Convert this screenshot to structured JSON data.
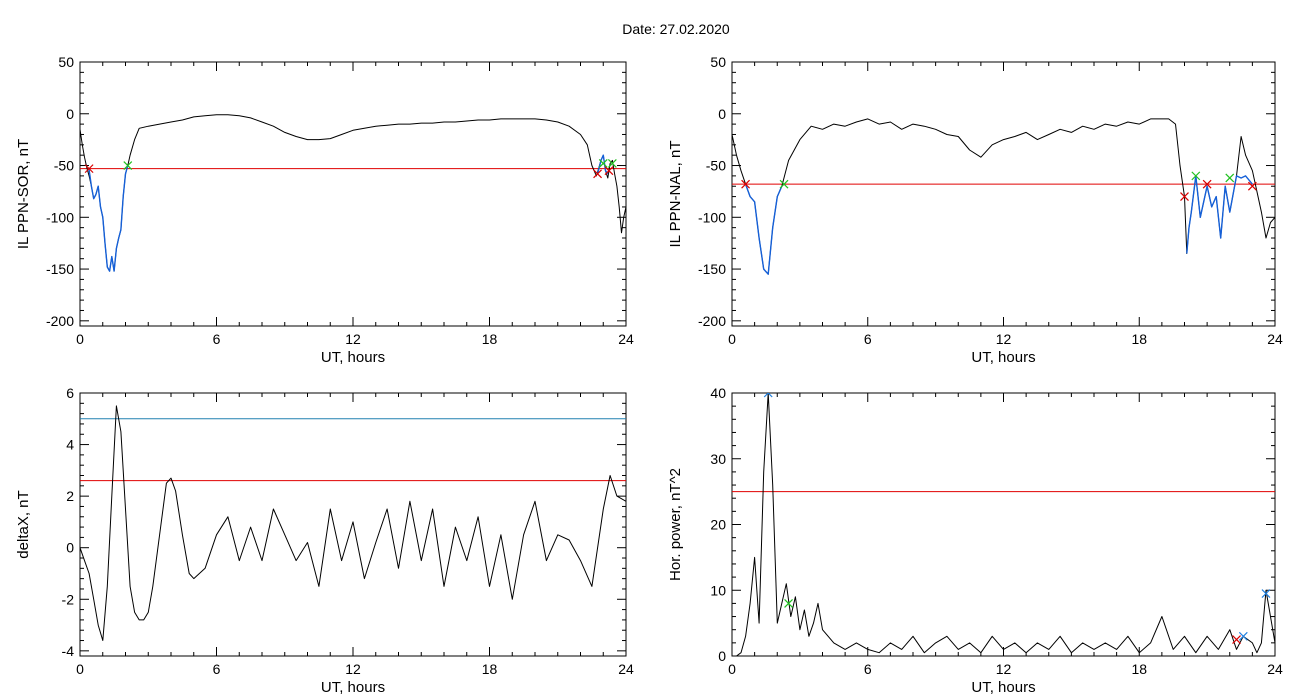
{
  "figure": {
    "title": "Date:  27.02.2020"
  },
  "chart_data": [
    {
      "id": "ppn_sor",
      "type": "line",
      "xlabel": "UT, hours",
      "ylabel": "IL PPN-SOR, nT",
      "xlim": [
        0,
        24
      ],
      "ylim": [
        -205,
        50
      ],
      "xticks": [
        0,
        6,
        12,
        18,
        24
      ],
      "yticks": [
        -200,
        -150,
        -100,
        -50,
        0,
        50
      ],
      "grid": false,
      "threshold": {
        "value": -53,
        "color": "#e00000"
      },
      "series": [
        {
          "color": "#000000",
          "x": [
            0,
            0.1,
            0.2,
            0.3,
            0.4,
            0.5,
            0.6,
            0.7,
            0.8,
            0.9,
            1.0,
            1.1,
            1.2,
            1.3,
            1.4,
            1.5,
            1.6,
            1.7,
            1.8,
            1.9,
            2.0,
            2.1,
            2.2,
            2.4,
            2.6,
            3.0,
            3.5,
            4.0,
            4.5,
            5.0,
            5.5,
            6.0,
            6.5,
            7.0,
            7.5,
            8.0,
            8.5,
            9.0,
            9.5,
            10.0,
            10.5,
            11.0,
            11.5,
            12.0,
            12.5,
            13.0,
            13.5,
            14.0,
            14.5,
            15.0,
            15.5,
            16.0,
            16.5,
            17.0,
            17.5,
            18.0,
            18.5,
            19.0,
            19.5,
            20.0,
            20.5,
            21.0,
            21.5,
            22.0,
            22.3,
            22.5,
            22.7,
            22.9,
            23.0,
            23.1,
            23.2,
            23.3,
            23.4,
            23.5,
            23.6,
            23.7,
            23.8,
            23.9,
            24.0
          ],
          "values": [
            -15,
            -30,
            -42,
            -52,
            -60,
            -70,
            -82,
            -78,
            -70,
            -90,
            -100,
            -125,
            -148,
            -152,
            -138,
            -152,
            -130,
            -120,
            -112,
            -80,
            -58,
            -50,
            -40,
            -25,
            -14,
            -12,
            -10,
            -8,
            -6,
            -3,
            -2,
            -1,
            -1,
            -2,
            -4,
            -8,
            -12,
            -18,
            -22,
            -25,
            -25,
            -24,
            -20,
            -16,
            -14,
            -12,
            -11,
            -10,
            -10,
            -9,
            -9,
            -8,
            -8,
            -7,
            -6,
            -6,
            -5,
            -5,
            -5,
            -5,
            -6,
            -8,
            -12,
            -20,
            -30,
            -50,
            -60,
            -45,
            -40,
            -55,
            -62,
            -48,
            -45,
            -58,
            -70,
            -90,
            -115,
            -100,
            -90
          ]
        },
        {
          "color": "#1560d8",
          "x": [
            0.4,
            0.5,
            0.6,
            0.7,
            0.8,
            0.9,
            1.0,
            1.1,
            1.2,
            1.3,
            1.4,
            1.5,
            1.6,
            1.7,
            1.8,
            1.9,
            2.0,
            2.1
          ],
          "values": [
            -54,
            -70,
            -82,
            -78,
            -70,
            -90,
            -100,
            -125,
            -148,
            -152,
            -138,
            -152,
            -130,
            -120,
            -112,
            -80,
            -58,
            -50
          ]
        },
        {
          "color": "#1560d8",
          "x": [
            22.75,
            22.9,
            23.0,
            23.1,
            23.2
          ],
          "values": [
            -58,
            -45,
            -40,
            -55,
            -58
          ]
        }
      ],
      "markers": [
        {
          "x": 0.4,
          "y": -53,
          "color": "#d80000"
        },
        {
          "x": 2.1,
          "y": -50,
          "color": "#20c020"
        },
        {
          "x": 22.75,
          "y": -58,
          "color": "#d80000"
        },
        {
          "x": 23.0,
          "y": -48,
          "color": "#20c020"
        },
        {
          "x": 23.25,
          "y": -55,
          "color": "#d80000"
        },
        {
          "x": 23.4,
          "y": -48,
          "color": "#20c020"
        }
      ]
    },
    {
      "id": "ppn_nal",
      "type": "line",
      "xlabel": "UT, hours",
      "ylabel": "IL PPN-NAL, nT",
      "xlim": [
        0,
        24
      ],
      "ylim": [
        -205,
        50
      ],
      "xticks": [
        0,
        6,
        12,
        18,
        24
      ],
      "yticks": [
        -200,
        -150,
        -100,
        -50,
        0,
        50
      ],
      "grid": false,
      "threshold": {
        "value": -68,
        "color": "#e00000"
      },
      "series": [
        {
          "color": "#000000",
          "x": [
            0,
            0.2,
            0.4,
            0.6,
            0.8,
            1.0,
            1.2,
            1.4,
            1.6,
            1.8,
            2.0,
            2.2,
            2.5,
            3.0,
            3.5,
            4.0,
            4.5,
            5.0,
            5.5,
            6.0,
            6.5,
            7.0,
            7.5,
            8.0,
            8.5,
            9.0,
            9.5,
            10.0,
            10.5,
            11.0,
            11.5,
            12.0,
            12.5,
            13.0,
            13.5,
            14.0,
            14.5,
            15.0,
            15.5,
            16.0,
            16.5,
            17.0,
            17.5,
            18.0,
            18.5,
            19.0,
            19.3,
            19.6,
            19.8,
            20.0,
            20.1,
            20.2,
            20.3,
            20.5,
            20.7,
            21.0,
            21.2,
            21.4,
            21.6,
            21.8,
            22.0,
            22.3,
            22.5,
            22.7,
            23.0,
            23.2,
            23.4,
            23.6,
            23.8,
            24.0
          ],
          "values": [
            -20,
            -40,
            -55,
            -68,
            -80,
            -85,
            -120,
            -150,
            -155,
            -110,
            -80,
            -70,
            -45,
            -25,
            -12,
            -15,
            -10,
            -12,
            -8,
            -5,
            -10,
            -8,
            -15,
            -10,
            -12,
            -15,
            -20,
            -22,
            -35,
            -42,
            -30,
            -25,
            -22,
            -18,
            -25,
            -20,
            -15,
            -18,
            -12,
            -15,
            -10,
            -12,
            -8,
            -10,
            -5,
            -5,
            -5,
            -10,
            -50,
            -80,
            -135,
            -110,
            -95,
            -60,
            -100,
            -70,
            -90,
            -80,
            -120,
            -70,
            -95,
            -60,
            -22,
            -40,
            -55,
            -75,
            -95,
            -120,
            -105,
            -100
          ]
        },
        {
          "color": "#1560d8",
          "x": [
            0.6,
            0.8,
            1.0,
            1.2,
            1.4,
            1.6,
            1.8,
            2.0,
            2.2
          ],
          "values": [
            -68,
            -80,
            -85,
            -120,
            -150,
            -155,
            -110,
            -80,
            -70
          ]
        },
        {
          "color": "#1560d8",
          "x": [
            20.1,
            20.2,
            20.3,
            20.5,
            20.7,
            21.0,
            21.2,
            21.4,
            21.6,
            21.8,
            22.0,
            22.3,
            22.5,
            22.7,
            23.0
          ],
          "values": [
            -135,
            -110,
            -95,
            -60,
            -100,
            -70,
            -90,
            -80,
            -120,
            -70,
            -95,
            -60,
            -62,
            -60,
            -68
          ]
        }
      ],
      "markers": [
        {
          "x": 0.6,
          "y": -68,
          "color": "#d80000"
        },
        {
          "x": 2.3,
          "y": -68,
          "color": "#20c020"
        },
        {
          "x": 20.0,
          "y": -80,
          "color": "#d80000"
        },
        {
          "x": 20.5,
          "y": -60,
          "color": "#20c020"
        },
        {
          "x": 21.0,
          "y": -68,
          "color": "#d80000"
        },
        {
          "x": 22.0,
          "y": -62,
          "color": "#20c020"
        },
        {
          "x": 23.0,
          "y": -70,
          "color": "#d80000"
        }
      ]
    },
    {
      "id": "deltax",
      "type": "line",
      "xlabel": "UT, hours",
      "ylabel": "deltaX, nT",
      "xlim": [
        0,
        24
      ],
      "ylim": [
        -4.2,
        6
      ],
      "xticks": [
        0,
        6,
        12,
        18,
        24
      ],
      "yticks": [
        -4,
        -2,
        0,
        2,
        4,
        6
      ],
      "grid": false,
      "hlines": [
        {
          "value": 5.0,
          "color": "#2080b0"
        },
        {
          "value": 2.6,
          "color": "#e00000"
        }
      ],
      "series": [
        {
          "color": "#000000",
          "x": [
            0,
            0.2,
            0.4,
            0.6,
            0.8,
            1.0,
            1.2,
            1.4,
            1.6,
            1.8,
            2.0,
            2.2,
            2.4,
            2.6,
            2.8,
            3.0,
            3.2,
            3.5,
            3.8,
            4.0,
            4.2,
            4.5,
            4.8,
            5.0,
            5.5,
            6.0,
            6.5,
            7.0,
            7.5,
            8.0,
            8.5,
            9.0,
            9.5,
            10.0,
            10.5,
            11.0,
            11.5,
            12.0,
            12.5,
            13.0,
            13.5,
            14.0,
            14.5,
            15.0,
            15.5,
            16.0,
            16.5,
            17.0,
            17.5,
            18.0,
            18.5,
            19.0,
            19.5,
            20.0,
            20.5,
            21.0,
            21.5,
            22.0,
            22.5,
            23.0,
            23.3,
            23.6,
            24.0
          ],
          "values": [
            0,
            -0.5,
            -1.0,
            -2.0,
            -3.0,
            -3.6,
            -1.5,
            2.0,
            5.5,
            4.5,
            1.5,
            -1.5,
            -2.5,
            -2.8,
            -2.8,
            -2.5,
            -1.5,
            0.5,
            2.5,
            2.7,
            2.2,
            0.5,
            -1.0,
            -1.2,
            -0.8,
            0.5,
            1.2,
            -0.5,
            0.8,
            -0.5,
            1.5,
            0.5,
            -0.5,
            0.2,
            -1.5,
            1.5,
            -0.5,
            1.0,
            -1.2,
            0.2,
            1.5,
            -0.8,
            1.8,
            -0.5,
            1.5,
            -1.5,
            0.8,
            -0.5,
            1.2,
            -1.5,
            0.5,
            -2.0,
            0.5,
            1.8,
            -0.5,
            0.5,
            0.3,
            -0.5,
            -1.5,
            1.5,
            2.8,
            2.0,
            1.8
          ]
        }
      ]
    },
    {
      "id": "hor_power",
      "type": "line",
      "xlabel": "UT, hours",
      "ylabel": "Hor. power, nT^2",
      "xlim": [
        0,
        24
      ],
      "ylim": [
        0,
        40
      ],
      "xticks": [
        0,
        6,
        12,
        18,
        24
      ],
      "yticks": [
        0,
        10,
        20,
        30,
        40
      ],
      "grid": false,
      "hlines": [
        {
          "value": 25,
          "color": "#e00000"
        }
      ],
      "series": [
        {
          "color": "#000000",
          "x": [
            0,
            0.2,
            0.4,
            0.6,
            0.8,
            1.0,
            1.2,
            1.4,
            1.6,
            1.8,
            2.0,
            2.2,
            2.4,
            2.6,
            2.8,
            3.0,
            3.2,
            3.4,
            3.6,
            3.8,
            4.0,
            4.5,
            5.0,
            5.5,
            6.0,
            6.5,
            7.0,
            7.5,
            8.0,
            8.5,
            9.0,
            9.5,
            10.0,
            10.5,
            11.0,
            11.5,
            12.0,
            12.5,
            13.0,
            13.5,
            14.0,
            14.5,
            15.0,
            15.5,
            16.0,
            16.5,
            17.0,
            17.5,
            18.0,
            18.5,
            19.0,
            19.5,
            20.0,
            20.5,
            21.0,
            21.5,
            22.0,
            22.3,
            22.6,
            23.0,
            23.2,
            23.4,
            23.6,
            24.0
          ],
          "values": [
            0,
            0,
            0.5,
            3,
            8,
            15,
            5,
            28,
            40,
            26,
            5,
            8,
            11,
            6,
            9,
            4,
            7,
            3,
            5,
            8,
            4,
            2,
            1,
            2,
            1,
            0.5,
            2,
            1,
            3,
            0.5,
            2,
            3,
            1,
            2,
            0.5,
            3,
            1,
            2,
            0.5,
            2,
            1,
            3,
            0.5,
            2,
            1,
            2,
            1,
            3,
            0.5,
            2,
            6,
            1,
            3,
            0.5,
            3,
            1,
            4,
            1,
            3,
            2,
            0.5,
            2,
            10,
            2
          ]
        }
      ],
      "markers": [
        {
          "x": 1.6,
          "y": 40,
          "color": "#2080e0"
        },
        {
          "x": 2.5,
          "y": 8,
          "color": "#20c020"
        },
        {
          "x": 22.3,
          "y": 2.5,
          "color": "#d80000"
        },
        {
          "x": 22.6,
          "y": 3,
          "color": "#2080e0"
        },
        {
          "x": 23.6,
          "y": 9.5,
          "color": "#2080e0"
        }
      ]
    }
  ]
}
